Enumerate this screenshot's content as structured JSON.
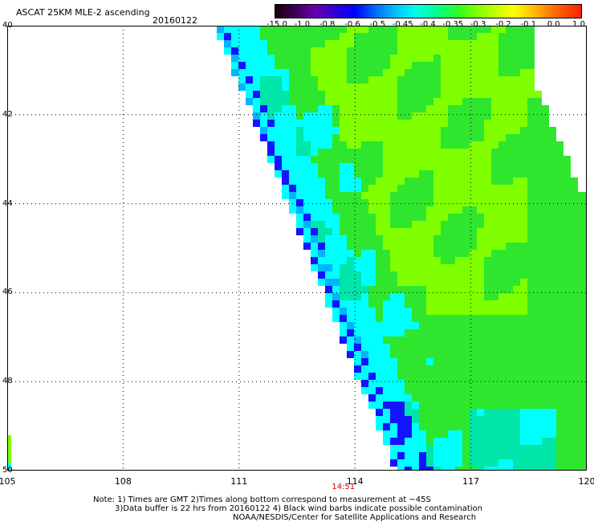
{
  "header": {
    "title": "ASCAT 25KM MLE-2 ascending",
    "date": "20160122"
  },
  "colorbar": {
    "labels": [
      "-15.0",
      "-1.0",
      "-0.8",
      "-0.6",
      "-0.5",
      "-0.45",
      "-0.4",
      "-0.35",
      "-0.3",
      "-0.2",
      "-0.1",
      "0.0",
      "1.0"
    ]
  },
  "map": {
    "lat_labels": [
      "40",
      "42",
      "44",
      "46",
      "48",
      "50"
    ],
    "lon_labels": [
      "105",
      "108",
      "111",
      "114",
      "117",
      "120"
    ],
    "pass_time": "14:51",
    "colors": {
      "green": "#2ee62e",
      "lime": "#7fff00",
      "cyan": "#00ffff",
      "teal": "#00e5a8",
      "blue": "#1414ff",
      "light_blue": "#00b4ff"
    }
  },
  "notes": {
    "line1": "Note: 1) Times are GMT 2)Times along bottom correspond to measurement at ~45S",
    "line2": "3)Data buffer is 22 hrs from 20160122 4) Black wind barbs indicate possible contamination",
    "line3": "NOAA/NESDIS/Center for Satellite Applications and Research"
  }
}
